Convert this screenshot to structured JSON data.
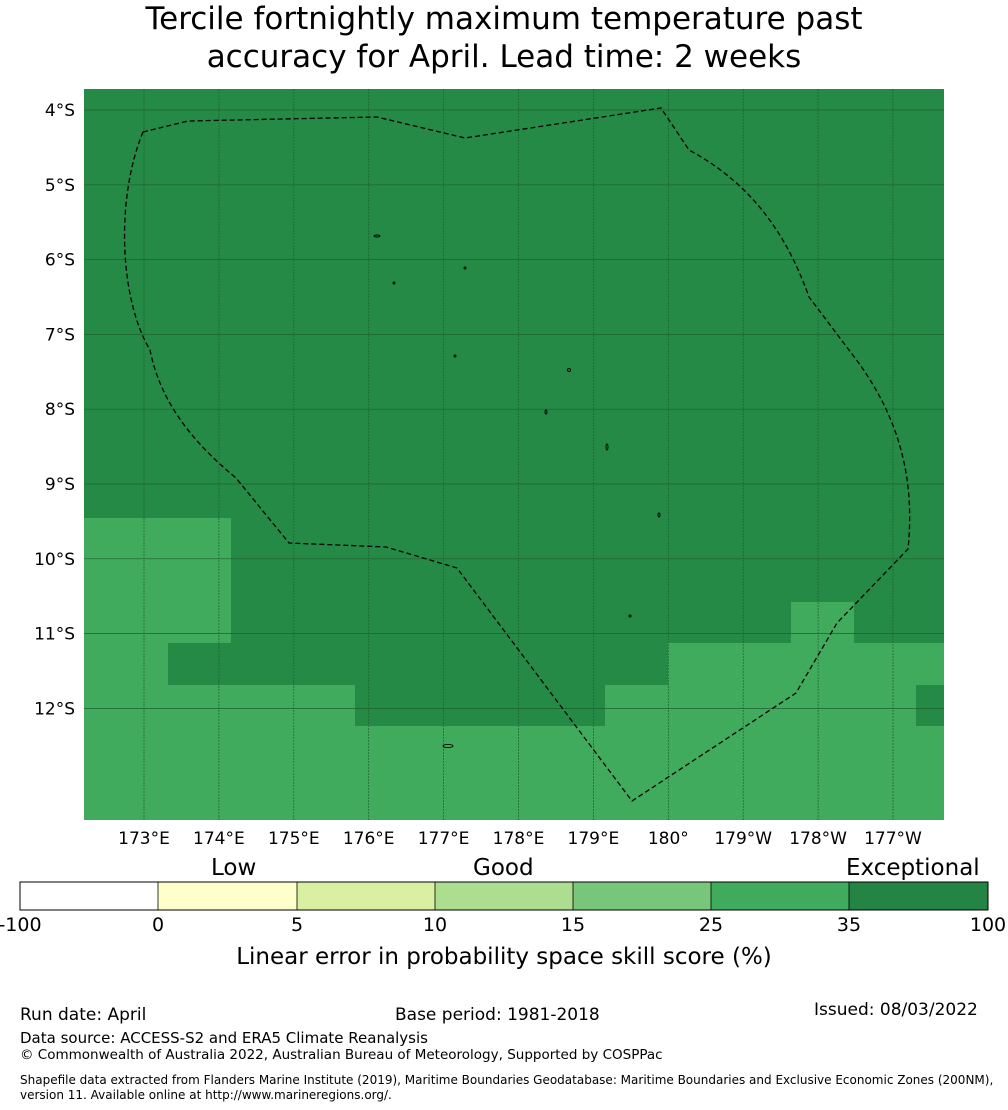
{
  "title_line1": "Tercile fortnightly maximum temperature past",
  "title_line2": "accuracy for April. Lead time: 2 weeks",
  "map": {
    "lat_labels": [
      "4°S",
      "5°S",
      "6°S",
      "7°S",
      "8°S",
      "9°S",
      "10°S",
      "11°S",
      "12°S"
    ],
    "lat_values": [
      -4,
      -5,
      -6,
      -7,
      -8,
      -9,
      -10,
      -11,
      -12
    ],
    "lon_labels": [
      "173°E",
      "174°E",
      "175°E",
      "176°E",
      "177°E",
      "178°E",
      "179°E",
      "180°",
      "179°W",
      "178°W",
      "177°W"
    ],
    "lon_values": [
      173,
      174,
      175,
      176,
      177,
      178,
      179,
      180,
      181,
      182,
      183
    ],
    "colors": {
      "exceptional": "#248a45",
      "good25": "#41ab5d",
      "grid": "#1f5f2e",
      "eez": "#000000"
    }
  },
  "colorbar": {
    "categories": [
      "Low",
      "Good",
      "Exceptional"
    ],
    "ticks": [
      "-100",
      "0",
      "5",
      "10",
      "15",
      "25",
      "35",
      "100"
    ],
    "colors": [
      "#ffffff",
      "#ffffcc",
      "#d9f0a3",
      "#addd8e",
      "#78c679",
      "#41ab5d",
      "#238443"
    ],
    "label": "Linear error in probability space skill score (%)"
  },
  "footer": {
    "run_date": "Run date: April",
    "base_period": "Base period: 1981-2018",
    "issued": "Issued: 08/03/2022",
    "data_source": "Data source: ACCESS-S2 and ERA5 Climate Reanalysis",
    "copyright": "© Commonwealth of Australia 2022, Australian Bureau of Meteorology, Supported by COSPPac",
    "shapefile_line1": "Shapefile data extracted from Flanders Marine Institute (2019), Maritime Boundaries Geodatabase: Maritime Boundaries and Exclusive Economic Zones (200NM),",
    "shapefile_line2": "version 11. Available online at http://www.marineregions.org/."
  }
}
